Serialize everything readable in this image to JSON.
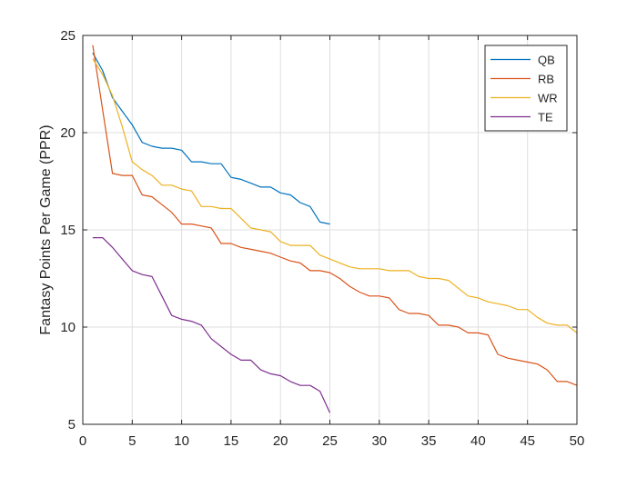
{
  "chart_data": {
    "type": "line",
    "title": "",
    "xlabel": "",
    "ylabel": "Fantasy Points Per Game (PPR)",
    "xlim": [
      0,
      50
    ],
    "ylim": [
      5,
      25
    ],
    "xticks": [
      0,
      5,
      10,
      15,
      20,
      25,
      30,
      35,
      40,
      45,
      50
    ],
    "yticks": [
      5,
      10,
      15,
      20,
      25
    ],
    "grid": true,
    "legend_position": "top-right",
    "series": [
      {
        "name": "QB",
        "color": "#0072BD",
        "x": [
          1,
          2,
          3,
          4,
          5,
          6,
          7,
          8,
          9,
          10,
          11,
          12,
          13,
          14,
          15,
          16,
          17,
          18,
          19,
          20,
          21,
          22,
          23,
          24,
          25
        ],
        "values": [
          24.1,
          23.2,
          21.8,
          21.1,
          20.4,
          19.5,
          19.3,
          19.2,
          19.2,
          19.1,
          18.5,
          18.5,
          18.4,
          18.4,
          17.7,
          17.6,
          17.4,
          17.2,
          17.2,
          16.9,
          16.8,
          16.4,
          16.2,
          15.4,
          15.3
        ]
      },
      {
        "name": "RB",
        "color": "#D95319",
        "x": [
          1,
          2,
          3,
          4,
          5,
          6,
          7,
          8,
          9,
          10,
          11,
          12,
          13,
          14,
          15,
          16,
          17,
          18,
          19,
          20,
          21,
          22,
          23,
          24,
          25,
          26,
          27,
          28,
          29,
          30,
          31,
          32,
          33,
          34,
          35,
          36,
          37,
          38,
          39,
          40,
          41,
          42,
          43,
          44,
          45,
          46,
          47,
          48,
          49,
          50
        ],
        "values": [
          24.5,
          21.2,
          17.9,
          17.8,
          17.8,
          16.8,
          16.7,
          16.3,
          15.9,
          15.3,
          15.3,
          15.2,
          15.1,
          14.3,
          14.3,
          14.1,
          14.0,
          13.9,
          13.8,
          13.6,
          13.4,
          13.3,
          12.9,
          12.9,
          12.8,
          12.5,
          12.1,
          11.8,
          11.6,
          11.6,
          11.5,
          10.9,
          10.7,
          10.7,
          10.6,
          10.1,
          10.1,
          10.0,
          9.7,
          9.7,
          9.6,
          8.6,
          8.4,
          8.3,
          8.2,
          8.1,
          7.8,
          7.2,
          7.2,
          7.0
        ]
      },
      {
        "name": "WR",
        "color": "#EDB120",
        "x": [
          1,
          2,
          3,
          4,
          5,
          6,
          7,
          8,
          9,
          10,
          11,
          12,
          13,
          14,
          15,
          16,
          17,
          18,
          19,
          20,
          21,
          22,
          23,
          24,
          25,
          26,
          27,
          28,
          29,
          30,
          31,
          32,
          33,
          34,
          35,
          36,
          37,
          38,
          39,
          40,
          41,
          42,
          43,
          44,
          45,
          46,
          47,
          48,
          49,
          50
        ],
        "values": [
          23.8,
          23.0,
          21.9,
          20.3,
          18.5,
          18.1,
          17.8,
          17.3,
          17.3,
          17.1,
          17.0,
          16.2,
          16.2,
          16.1,
          16.1,
          15.6,
          15.1,
          15.0,
          14.9,
          14.4,
          14.2,
          14.2,
          14.2,
          13.7,
          13.5,
          13.3,
          13.1,
          13.0,
          13.0,
          13.0,
          12.9,
          12.9,
          12.9,
          12.6,
          12.5,
          12.5,
          12.4,
          12.0,
          11.6,
          11.5,
          11.3,
          11.2,
          11.1,
          10.9,
          10.9,
          10.5,
          10.2,
          10.1,
          10.1,
          9.7
        ]
      },
      {
        "name": "TE",
        "color": "#7E2F8E",
        "x": [
          1,
          2,
          3,
          4,
          5,
          6,
          7,
          8,
          9,
          10,
          11,
          12,
          13,
          14,
          15,
          16,
          17,
          18,
          19,
          20,
          21,
          22,
          23,
          24,
          25
        ],
        "values": [
          14.6,
          14.6,
          14.1,
          13.5,
          12.9,
          12.7,
          12.6,
          11.6,
          10.6,
          10.4,
          10.3,
          10.1,
          9.4,
          9.0,
          8.6,
          8.3,
          8.3,
          7.8,
          7.6,
          7.5,
          7.2,
          7.0,
          7.0,
          6.7,
          5.6
        ]
      }
    ]
  }
}
